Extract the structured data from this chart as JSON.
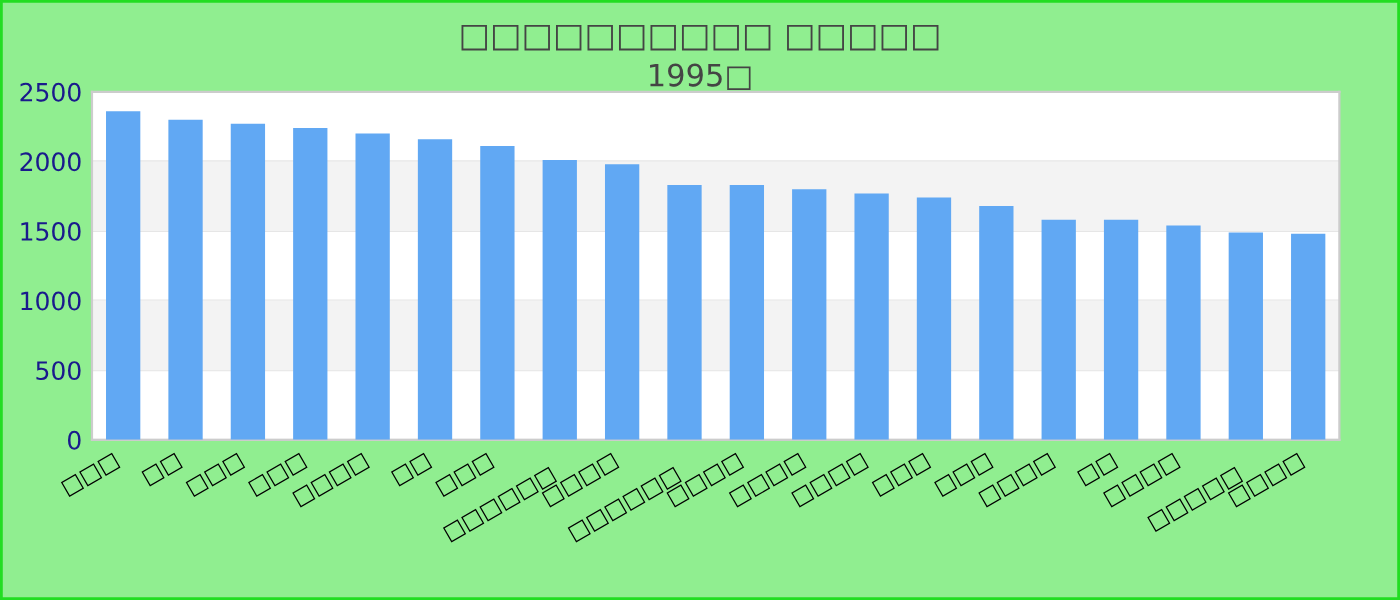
{
  "chart_data": {
    "type": "bar",
    "title": "□□□□□□□□□□ □□□□□",
    "subtitle": "1995□",
    "categories": [
      "□□□",
      "□□",
      "□□□",
      "□□□",
      "□□□□",
      "□□",
      "□□□",
      "□□□□□□",
      "□□□□",
      "□□□□□□",
      "□□□□",
      "□□□□",
      "□□□□",
      "□□□",
      "□□□",
      "□□□□",
      "□□",
      "□□□□",
      "□□□□□",
      "□□□□"
    ],
    "values": [
      2360,
      2300,
      2270,
      2240,
      2200,
      2160,
      2110,
      2010,
      1980,
      1830,
      1830,
      1800,
      1770,
      1740,
      1680,
      1580,
      1580,
      1540,
      1490,
      1480
    ],
    "color": "#61a8f3",
    "ylim": [
      0,
      2500
    ],
    "yticks": [
      0,
      500,
      1000,
      1500,
      2000,
      2500
    ],
    "grid": "y"
  }
}
